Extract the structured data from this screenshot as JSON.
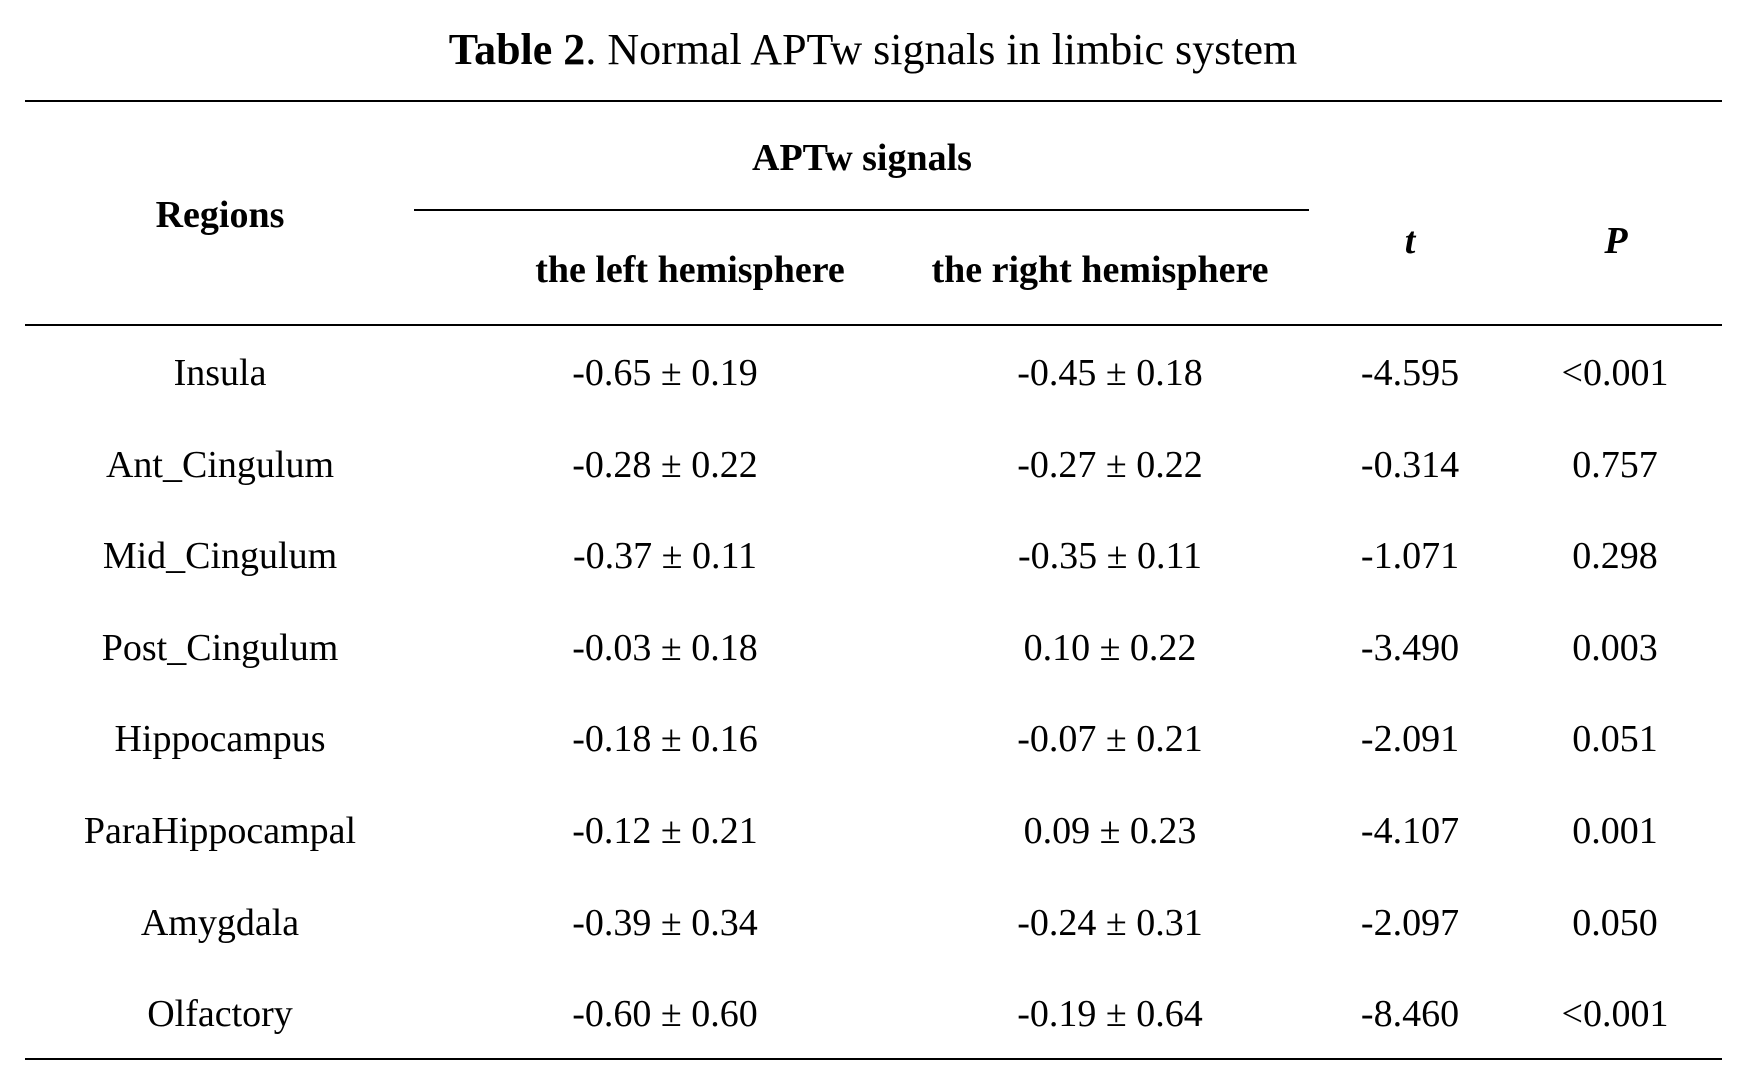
{
  "caption": {
    "label": "Table 2",
    "text": ". Normal APTw signals in limbic system"
  },
  "header": {
    "regions": "Regions",
    "group": "APTw signals",
    "left": "the left hemisphere",
    "right": "the right hemisphere",
    "t": "t",
    "p": "P"
  },
  "rows": [
    {
      "region": "Insula",
      "left": "-0.65 ± 0.19",
      "right": "-0.45 ± 0.18",
      "t": "-4.595",
      "p": "<0.001"
    },
    {
      "region": "Ant_Cingulum",
      "left": "-0.28 ± 0.22",
      "right": "-0.27 ± 0.22",
      "t": "-0.314",
      "p": "0.757"
    },
    {
      "region": "Mid_Cingulum",
      "left": "-0.37 ± 0.11",
      "right": "-0.35 ± 0.11",
      "t": "-1.071",
      "p": "0.298"
    },
    {
      "region": "Post_Cingulum",
      "left": "-0.03 ± 0.18",
      "right": "0.10 ± 0.22",
      "t": "-3.490",
      "p": "0.003"
    },
    {
      "region": "Hippocampus",
      "left": "-0.18 ± 0.16",
      "right": "-0.07 ± 0.21",
      "t": "-2.091",
      "p": "0.051"
    },
    {
      "region": "ParaHippocampal",
      "left": "-0.12 ± 0.21",
      "right": "0.09 ± 0.23",
      "t": "-4.107",
      "p": "0.001"
    },
    {
      "region": "Amygdala",
      "left": "-0.39 ± 0.34",
      "right": "-0.24 ± 0.31",
      "t": "-2.097",
      "p": "0.050"
    },
    {
      "region": "Olfactory",
      "left": "-0.60 ± 0.60",
      "right": "-0.19 ± 0.64",
      "t": "-8.460",
      "p": "<0.001"
    }
  ]
}
